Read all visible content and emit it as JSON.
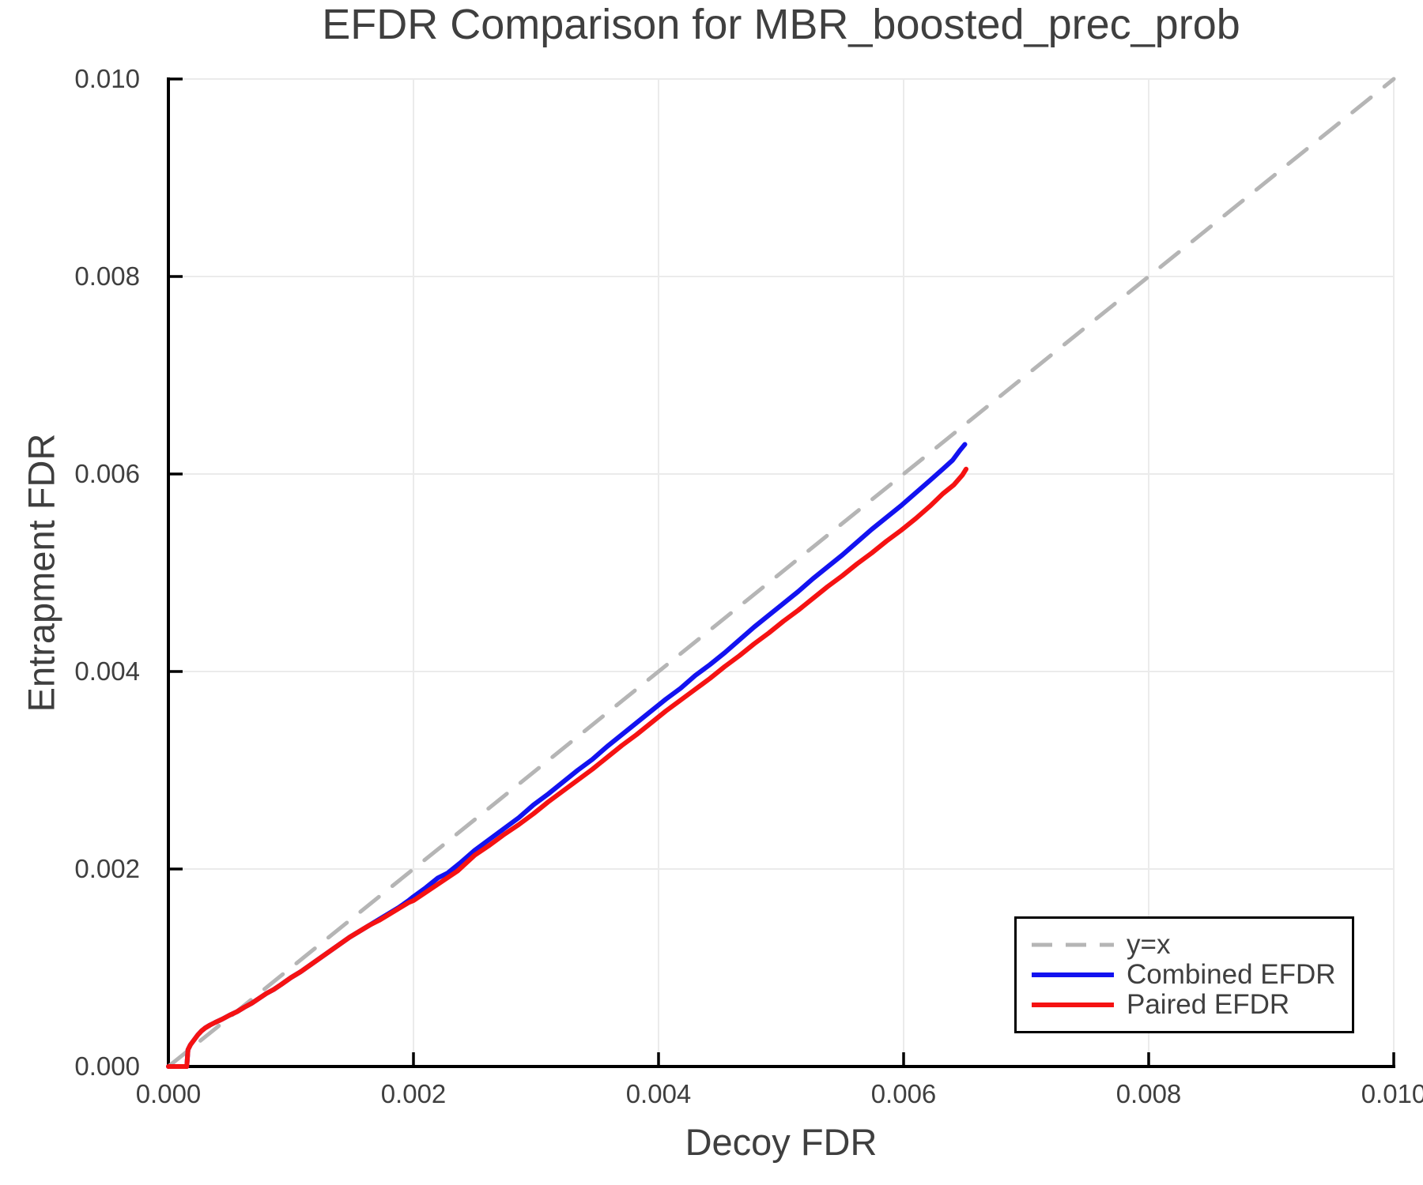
{
  "chart_data": {
    "type": "line",
    "title": "EFDR Comparison for MBR_boosted_prec_prob",
    "xlabel": "Decoy FDR",
    "ylabel": "Entrapment FDR",
    "xlim": [
      0.0,
      0.01
    ],
    "ylim": [
      0.0,
      0.01
    ],
    "xticks": {
      "values": [
        0.0,
        0.002,
        0.004,
        0.006,
        0.008,
        0.01
      ],
      "labels": [
        "0.000",
        "0.002",
        "0.004",
        "0.006",
        "0.008",
        "0.010"
      ]
    },
    "yticks": {
      "values": [
        0.0,
        0.002,
        0.004,
        0.006,
        0.008,
        0.01
      ],
      "labels": [
        "0.000",
        "0.002",
        "0.004",
        "0.006",
        "0.008",
        "0.010"
      ]
    },
    "grid": true,
    "legend_position": "lower right",
    "style": {
      "text_color": "#3f3f3f",
      "axis_color": "#000000",
      "grid_color": "#ebebeb"
    },
    "series": [
      {
        "name": "y=x",
        "line_style": "dashed",
        "color": "#b5b5b5",
        "width": 5,
        "x": [
          0.0,
          0.01
        ],
        "y": [
          0.0,
          0.01
        ]
      },
      {
        "name": "Combined EFDR",
        "line_style": "solid",
        "color": "#1212f0",
        "width": 6,
        "x": [
          0.0,
          0.00015,
          0.00016,
          0.00018,
          0.00021,
          0.00024,
          0.00027,
          0.0003,
          0.00034,
          0.00038,
          0.00044,
          0.0005,
          0.00056,
          0.00062,
          0.00068,
          0.00074,
          0.0008,
          0.00086,
          0.00092,
          0.001,
          0.00108,
          0.00116,
          0.00124,
          0.00132,
          0.0014,
          0.00148,
          0.00156,
          0.00164,
          0.00172,
          0.0018,
          0.00188,
          0.00196,
          0.002,
          0.0021,
          0.0022,
          0.00228,
          0.00238,
          0.0025,
          0.00262,
          0.00274,
          0.00286,
          0.00298,
          0.0031,
          0.00322,
          0.00334,
          0.00346,
          0.00358,
          0.0037,
          0.00382,
          0.00394,
          0.00406,
          0.00418,
          0.0043,
          0.00442,
          0.00454,
          0.00466,
          0.00478,
          0.0049,
          0.00502,
          0.00514,
          0.00526,
          0.00538,
          0.0055,
          0.00562,
          0.00574,
          0.00586,
          0.00598,
          0.0061,
          0.00622,
          0.00632,
          0.0064,
          0.00646,
          0.0065
        ],
        "y": [
          0.0,
          0.0,
          0.00017,
          0.00022,
          0.00027,
          0.00032,
          0.00036,
          0.00039,
          0.00042,
          0.000445,
          0.00048,
          0.00052,
          0.000555,
          0.0006,
          0.00064,
          0.00069,
          0.00074,
          0.00078,
          0.00083,
          0.0009,
          0.00096,
          0.00103,
          0.0011,
          0.00117,
          0.00124,
          0.00131,
          0.00137,
          0.00143,
          0.00149,
          0.00155,
          0.00161,
          0.00168,
          0.00172,
          0.00181,
          0.00191,
          0.00196,
          0.00206,
          0.00219,
          0.0023,
          0.00241,
          0.00252,
          0.00265,
          0.00276,
          0.00288,
          0.003,
          0.00311,
          0.00324,
          0.00336,
          0.00348,
          0.0036,
          0.00372,
          0.00383,
          0.00396,
          0.00407,
          0.00419,
          0.00432,
          0.00445,
          0.00457,
          0.00469,
          0.00481,
          0.00494,
          0.00506,
          0.00518,
          0.00531,
          0.00544,
          0.00556,
          0.00568,
          0.00581,
          0.00594,
          0.00605,
          0.00614,
          0.00624,
          0.0063
        ]
      },
      {
        "name": "Paired EFDR",
        "line_style": "solid",
        "color": "#f51212",
        "width": 6,
        "x": [
          0.0,
          0.00015,
          0.00016,
          0.00018,
          0.00021,
          0.00024,
          0.00027,
          0.0003,
          0.00034,
          0.00038,
          0.00044,
          0.0005,
          0.00056,
          0.00062,
          0.00068,
          0.00074,
          0.0008,
          0.00086,
          0.00092,
          0.001,
          0.00108,
          0.00116,
          0.00124,
          0.00132,
          0.0014,
          0.00148,
          0.00156,
          0.00164,
          0.00172,
          0.0018,
          0.00188,
          0.00196,
          0.002,
          0.00212,
          0.00224,
          0.00236,
          0.0025,
          0.00262,
          0.00274,
          0.00286,
          0.00298,
          0.0031,
          0.00322,
          0.00334,
          0.00346,
          0.00358,
          0.0037,
          0.00382,
          0.00394,
          0.00406,
          0.00418,
          0.0043,
          0.00442,
          0.00454,
          0.00466,
          0.00478,
          0.0049,
          0.00502,
          0.00514,
          0.00526,
          0.00538,
          0.0055,
          0.00562,
          0.00574,
          0.00586,
          0.00598,
          0.0061,
          0.00622,
          0.00632,
          0.00641,
          0.00648,
          0.00651
        ],
        "y": [
          0.0,
          0.0,
          0.00017,
          0.00022,
          0.00027,
          0.00032,
          0.00036,
          0.00039,
          0.00042,
          0.000445,
          0.00048,
          0.00052,
          0.000555,
          0.0006,
          0.00064,
          0.00069,
          0.00074,
          0.00078,
          0.00083,
          0.0009,
          0.00096,
          0.00103,
          0.0011,
          0.00117,
          0.00124,
          0.00131,
          0.00137,
          0.00143,
          0.00148,
          0.00154,
          0.0016,
          0.00166,
          0.00168,
          0.00178,
          0.00188,
          0.00198,
          0.00214,
          0.00224,
          0.00235,
          0.00245,
          0.00256,
          0.00268,
          0.00279,
          0.0029,
          0.00301,
          0.00313,
          0.00325,
          0.00336,
          0.00348,
          0.0036,
          0.00371,
          0.00382,
          0.00393,
          0.00405,
          0.00416,
          0.00428,
          0.00439,
          0.00451,
          0.00462,
          0.00474,
          0.00486,
          0.00497,
          0.00509,
          0.0052,
          0.00532,
          0.00543,
          0.00555,
          0.00568,
          0.0058,
          0.00589,
          0.00599,
          0.00605
        ]
      }
    ]
  }
}
